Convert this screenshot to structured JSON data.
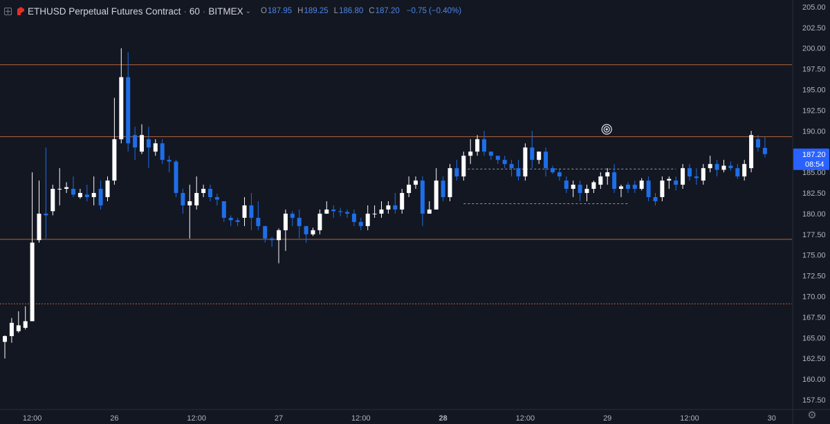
{
  "header": {
    "symbol_title": "ETHUSD Perpetual Futures Contract",
    "interval": "60",
    "exchange": "BITMEX",
    "ohlc": {
      "o_label": "O",
      "o": "187.95",
      "h_label": "H",
      "h": "189.25",
      "l_label": "L",
      "l": "186.80",
      "c_label": "C",
      "c": "187.20",
      "change": "−0.75 (−0.40%)"
    }
  },
  "price_axis": {
    "labels": [
      "205.00",
      "202.50",
      "200.00",
      "197.50",
      "195.00",
      "192.50",
      "190.00",
      "187.50",
      "185.00",
      "182.50",
      "180.00",
      "177.50",
      "175.00",
      "172.50",
      "170.00",
      "167.50",
      "165.00",
      "162.50",
      "160.00",
      "157.50"
    ],
    "last_price": "187.20",
    "countdown": "08:54"
  },
  "time_axis": {
    "labels": [
      {
        "t": 4,
        "text": "12:00",
        "bold": false
      },
      {
        "t": 16,
        "text": "26",
        "bold": false
      },
      {
        "t": 28,
        "text": "12:00",
        "bold": false
      },
      {
        "t": 40,
        "text": "27",
        "bold": false
      },
      {
        "t": 52,
        "text": "12:00",
        "bold": false
      },
      {
        "t": 64,
        "text": "28",
        "bold": true
      },
      {
        "t": 76,
        "text": "12:00",
        "bold": false
      },
      {
        "t": 88,
        "text": "29",
        "bold": false
      },
      {
        "t": 100,
        "text": "12:00",
        "bold": false
      },
      {
        "t": 112,
        "text": "30",
        "bold": false
      }
    ]
  },
  "colors": {
    "background": "#131722",
    "up": "#ffffff",
    "down": "#1e6ee8",
    "level_line": "#b5643a",
    "axis_text": "#b2b5be",
    "price_tag": "#2962ff"
  },
  "settings_icon": "gear-icon",
  "chart_data": {
    "type": "candlestick",
    "title": "ETHUSD Perpetual Futures Contract · 60 · BITMEX",
    "x_unit": "hourly bars (index 0 = first visible bar)",
    "ylim": [
      156.5,
      205.5
    ],
    "horizontal_levels": [
      {
        "price": 198.0,
        "style": "solid"
      },
      {
        "price": 189.3,
        "style": "solid"
      },
      {
        "price": 176.9,
        "style": "solid"
      },
      {
        "price": 169.1,
        "style": "dotted"
      }
    ],
    "dashed_ranges": [
      {
        "price": 185.4,
        "from": 67,
        "to": 98
      },
      {
        "price": 181.2,
        "from": 67,
        "to": 91
      }
    ],
    "candles": [
      [
        0,
        164.5,
        165.2,
        162.5,
        165.3
      ],
      [
        1,
        165.2,
        166.8,
        164.4,
        167.4
      ],
      [
        2,
        165.8,
        166.5,
        165.6,
        168.2
      ],
      [
        3,
        166.2,
        167.0,
        166.0,
        168.8
      ],
      [
        4,
        167.0,
        176.5,
        167.0,
        185.0
      ],
      [
        5,
        176.8,
        180.0,
        176.5,
        184.0
      ],
      [
        6,
        180.0,
        179.8,
        177.0,
        188.0
      ],
      [
        7,
        180.3,
        183.0,
        179.8,
        183.5
      ],
      [
        8,
        183.0,
        183.0,
        181.0,
        185.5
      ],
      [
        9,
        183.0,
        183.2,
        182.5,
        183.8
      ],
      [
        10,
        183.0,
        182.3,
        182.0,
        184.5
      ],
      [
        11,
        182.0,
        182.5,
        181.8,
        183.0
      ],
      [
        12,
        182.3,
        182.0,
        181.5,
        183.5
      ],
      [
        13,
        182.0,
        182.5,
        181.0,
        184.5
      ],
      [
        14,
        183.0,
        181.0,
        180.5,
        184.0
      ],
      [
        15,
        182.0,
        184.0,
        181.5,
        184.5
      ],
      [
        16,
        184.0,
        189.0,
        183.5,
        194.0
      ],
      [
        17,
        189.0,
        196.5,
        188.5,
        200.0
      ],
      [
        18,
        196.5,
        188.5,
        187.5,
        199.5
      ],
      [
        19,
        189.5,
        188.0,
        186.5,
        190.5
      ],
      [
        20,
        187.5,
        189.5,
        187.2,
        190.8
      ],
      [
        21,
        189.0,
        188.0,
        185.5,
        190.5
      ],
      [
        22,
        187.5,
        188.5,
        187.0,
        189.0
      ],
      [
        23,
        188.5,
        186.5,
        186.0,
        189.0
      ],
      [
        24,
        186.5,
        186.3,
        185.0,
        187.0
      ],
      [
        25,
        186.3,
        182.5,
        182.0,
        186.5
      ],
      [
        26,
        182.5,
        181.0,
        180.0,
        183.0
      ],
      [
        27,
        181.0,
        181.5,
        177.0,
        183.5
      ],
      [
        28,
        181.0,
        182.5,
        180.5,
        184.5
      ],
      [
        29,
        182.5,
        183.0,
        182.0,
        183.5
      ],
      [
        30,
        183.0,
        182.0,
        181.5,
        183.5
      ],
      [
        31,
        182.0,
        181.7,
        181.0,
        182.4
      ],
      [
        32,
        181.5,
        179.5,
        179.0,
        181.5
      ],
      [
        33,
        179.5,
        179.2,
        178.5,
        179.8
      ],
      [
        34,
        179.2,
        179.0,
        178.5,
        179.5
      ],
      [
        35,
        179.5,
        181.0,
        178.5,
        182.0
      ],
      [
        36,
        181.0,
        179.5,
        178.0,
        182.5
      ],
      [
        37,
        179.5,
        178.5,
        178.0,
        181.5
      ],
      [
        38,
        178.5,
        177.0,
        176.5,
        178.5
      ],
      [
        39,
        177.0,
        176.8,
        176.0,
        177.2
      ],
      [
        40,
        176.8,
        178.0,
        174.0,
        178.2
      ],
      [
        41,
        178.0,
        180.0,
        175.5,
        180.5
      ],
      [
        42,
        180.0,
        179.5,
        178.5,
        180.3
      ],
      [
        43,
        179.5,
        178.5,
        177.0,
        180.5
      ],
      [
        44,
        178.5,
        177.5,
        176.5,
        178.5
      ],
      [
        45,
        177.5,
        178.0,
        177.3,
        178.3
      ],
      [
        46,
        178.0,
        180.0,
        177.5,
        180.5
      ],
      [
        47,
        180.0,
        180.5,
        180.0,
        181.5
      ],
      [
        48,
        180.5,
        180.3,
        179.5,
        181.0
      ],
      [
        49,
        180.3,
        180.2,
        179.7,
        180.7
      ],
      [
        50,
        180.2,
        180.0,
        179.5,
        180.5
      ],
      [
        51,
        180.0,
        179.0,
        178.5,
        180.5
      ],
      [
        52,
        179.0,
        178.5,
        178.0,
        179.5
      ],
      [
        53,
        178.5,
        180.0,
        178.0,
        181.0
      ],
      [
        54,
        180.0,
        180.0,
        179.5,
        181.0
      ],
      [
        55,
        180.0,
        180.5,
        179.5,
        181.5
      ],
      [
        56,
        180.5,
        181.0,
        180.0,
        181.5
      ],
      [
        57,
        181.0,
        180.5,
        180.0,
        182.5
      ],
      [
        58,
        180.5,
        182.5,
        180.0,
        183.0
      ],
      [
        59,
        182.5,
        183.5,
        182.0,
        184.5
      ],
      [
        60,
        183.5,
        184.0,
        183.0,
        184.5
      ],
      [
        61,
        184.0,
        180.0,
        178.5,
        184.5
      ],
      [
        62,
        180.0,
        180.5,
        180.0,
        181.5
      ],
      [
        63,
        180.5,
        184.0,
        180.5,
        185.5
      ],
      [
        64,
        184.0,
        182.0,
        181.5,
        184.5
      ],
      [
        65,
        182.0,
        185.5,
        181.5,
        186.0
      ],
      [
        66,
        185.5,
        184.5,
        184.0,
        186.5
      ],
      [
        67,
        184.5,
        187.0,
        184.0,
        187.5
      ],
      [
        68,
        187.0,
        187.5,
        186.0,
        189.0
      ],
      [
        69,
        187.5,
        189.0,
        187.0,
        189.5
      ],
      [
        70,
        189.0,
        187.5,
        187.0,
        190.0
      ],
      [
        71,
        187.5,
        187.0,
        186.5,
        187.5
      ],
      [
        72,
        187.0,
        186.5,
        186.0,
        187.0
      ],
      [
        73,
        186.5,
        186.0,
        185.5,
        187.0
      ],
      [
        74,
        186.0,
        185.5,
        184.5,
        186.5
      ],
      [
        75,
        185.5,
        184.5,
        184.0,
        186.5
      ],
      [
        76,
        184.5,
        188.0,
        184.0,
        188.5
      ],
      [
        77,
        188.0,
        186.5,
        185.5,
        190.0
      ],
      [
        78,
        186.5,
        187.5,
        186.0,
        187.5
      ],
      [
        79,
        187.5,
        185.5,
        184.5,
        188.0
      ],
      [
        80,
        185.5,
        185.0,
        184.8,
        185.8
      ],
      [
        81,
        185.0,
        184.5,
        184.0,
        185.5
      ],
      [
        82,
        184.0,
        183.0,
        182.5,
        184.5
      ],
      [
        83,
        183.0,
        183.5,
        182.0,
        184.0
      ],
      [
        84,
        183.5,
        182.5,
        181.5,
        184.0
      ],
      [
        85,
        182.5,
        183.0,
        181.5,
        183.5
      ],
      [
        86,
        183.0,
        183.8,
        182.5,
        184.0
      ],
      [
        87,
        183.5,
        184.5,
        183.0,
        185.0
      ],
      [
        88,
        184.5,
        185.0,
        183.5,
        185.5
      ],
      [
        89,
        185.0,
        183.0,
        182.5,
        186.0
      ],
      [
        90,
        183.0,
        183.3,
        182.0,
        183.5
      ],
      [
        91,
        183.5,
        183.0,
        182.5,
        183.8
      ],
      [
        92,
        183.5,
        183.0,
        182.5,
        184.0
      ],
      [
        93,
        183.0,
        184.0,
        182.8,
        184.3
      ],
      [
        94,
        184.0,
        182.0,
        181.5,
        184.5
      ],
      [
        95,
        182.0,
        181.5,
        181.0,
        182.5
      ],
      [
        96,
        182.0,
        184.0,
        181.5,
        184.5
      ],
      [
        97,
        184.0,
        184.2,
        183.0,
        184.5
      ],
      [
        98,
        184.0,
        183.5,
        182.8,
        184.5
      ],
      [
        99,
        183.5,
        185.5,
        183.0,
        186.0
      ],
      [
        100,
        185.5,
        184.5,
        184.0,
        186.0
      ],
      [
        101,
        184.5,
        184.3,
        183.5,
        185.5
      ],
      [
        102,
        184.0,
        185.5,
        183.5,
        186.0
      ],
      [
        103,
        185.5,
        186.0,
        185.0,
        187.0
      ],
      [
        104,
        186.0,
        185.3,
        184.5,
        186.5
      ],
      [
        105,
        185.3,
        185.8,
        185.0,
        186.5
      ],
      [
        106,
        185.8,
        185.5,
        185.2,
        186.3
      ],
      [
        107,
        185.5,
        184.5,
        184.2,
        186.0
      ],
      [
        108,
        184.5,
        186.0,
        184.0,
        186.5
      ],
      [
        109,
        185.5,
        189.5,
        185.0,
        190.0
      ],
      [
        110,
        189.0,
        188.0,
        187.5,
        189.5
      ],
      [
        111,
        187.95,
        187.2,
        186.8,
        189.25
      ]
    ]
  }
}
